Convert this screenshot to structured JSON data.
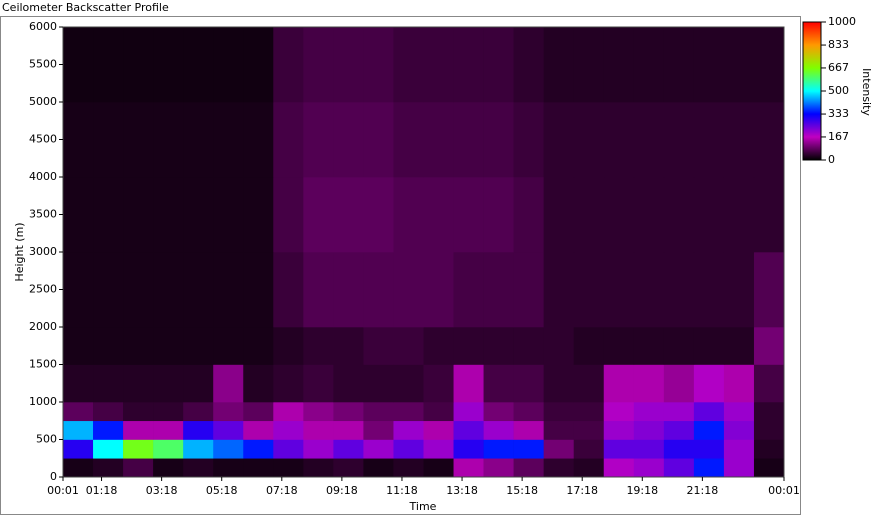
{
  "chart_data": {
    "type": "heatmap",
    "title": "Ceilometer Backscatter Profile",
    "x_label": "Time",
    "y_label": "Height (m)",
    "colorbar_label": "Intensity",
    "xlim": [
      0.017,
      24.017
    ],
    "xticks": [
      {
        "value": 0.017,
        "label": "00:01"
      },
      {
        "value": 1.3,
        "label": "01:18"
      },
      {
        "value": 3.3,
        "label": "03:18"
      },
      {
        "value": 5.3,
        "label": "05:18"
      },
      {
        "value": 7.3,
        "label": "07:18"
      },
      {
        "value": 9.3,
        "label": "09:18"
      },
      {
        "value": 11.3,
        "label": "11:18"
      },
      {
        "value": 13.3,
        "label": "13:18"
      },
      {
        "value": 15.3,
        "label": "15:18"
      },
      {
        "value": 17.3,
        "label": "17:18"
      },
      {
        "value": 19.3,
        "label": "19:18"
      },
      {
        "value": 21.3,
        "label": "21:18"
      },
      {
        "value": 24.017,
        "label": "00:01"
      }
    ],
    "ylim": [
      0,
      6000
    ],
    "yticks": [
      0,
      500,
      1000,
      1500,
      2000,
      2500,
      3000,
      3500,
      4000,
      4500,
      5000,
      5500,
      6000
    ],
    "clim": [
      0,
      1000
    ],
    "cticks": [
      0,
      167,
      333,
      500,
      667,
      833,
      1000
    ],
    "colorscale": [
      "#000000",
      "#c000c0",
      "#0000ff",
      "#00ffff",
      "#80ff00",
      "#ff9900",
      "#ff0000"
    ],
    "x_bins": [
      0.017,
      1.017,
      2.017,
      3.017,
      4.017,
      5.017,
      6.017,
      7.017,
      8.017,
      9.017,
      10.017,
      11.017,
      12.017,
      13.017,
      14.017,
      15.017,
      16.017,
      17.017,
      18.017,
      19.017,
      20.017,
      21.017,
      22.017,
      23.017,
      24.017
    ],
    "y_bins": [
      0,
      250,
      500,
      750,
      1000,
      1500,
      2000,
      3000,
      4000,
      5000,
      6000
    ],
    "z": [
      [
        20,
        30,
        60,
        20,
        30,
        20,
        20,
        20,
        30,
        40,
        20,
        30,
        20,
        150,
        120,
        80,
        40,
        30,
        180,
        200,
        250,
        350,
        200,
        20
      ],
      [
        300,
        500,
        650,
        600,
        450,
        400,
        350,
        250,
        200,
        250,
        200,
        250,
        200,
        300,
        350,
        350,
        100,
        50,
        250,
        250,
        300,
        300,
        200,
        30
      ],
      [
        450,
        350,
        150,
        150,
        300,
        250,
        150,
        200,
        150,
        150,
        100,
        200,
        150,
        250,
        200,
        150,
        60,
        60,
        200,
        220,
        250,
        350,
        220,
        40
      ],
      [
        80,
        60,
        40,
        40,
        60,
        100,
        80,
        150,
        120,
        100,
        80,
        80,
        60,
        200,
        100,
        80,
        50,
        50,
        180,
        200,
        200,
        250,
        200,
        40
      ],
      [
        30,
        30,
        30,
        30,
        30,
        120,
        30,
        40,
        50,
        40,
        40,
        40,
        50,
        150,
        60,
        60,
        40,
        40,
        150,
        150,
        130,
        180,
        150,
        60
      ],
      [
        20,
        20,
        20,
        20,
        20,
        20,
        20,
        30,
        40,
        40,
        50,
        50,
        40,
        40,
        40,
        40,
        40,
        30,
        30,
        30,
        30,
        30,
        30,
        100
      ],
      [
        20,
        20,
        20,
        20,
        20,
        20,
        20,
        50,
        70,
        70,
        70,
        70,
        70,
        60,
        60,
        60,
        40,
        40,
        40,
        40,
        40,
        40,
        40,
        70
      ],
      [
        20,
        20,
        20,
        20,
        20,
        20,
        20,
        60,
        80,
        80,
        80,
        70,
        70,
        70,
        70,
        60,
        40,
        40,
        40,
        40,
        40,
        40,
        40,
        40
      ],
      [
        20,
        20,
        20,
        20,
        20,
        20,
        20,
        60,
        70,
        70,
        70,
        60,
        60,
        60,
        60,
        50,
        40,
        40,
        40,
        40,
        40,
        40,
        40,
        40
      ],
      [
        15,
        15,
        15,
        15,
        15,
        15,
        15,
        50,
        60,
        60,
        60,
        50,
        50,
        50,
        50,
        40,
        30,
        30,
        30,
        30,
        30,
        30,
        30,
        30
      ]
    ]
  }
}
